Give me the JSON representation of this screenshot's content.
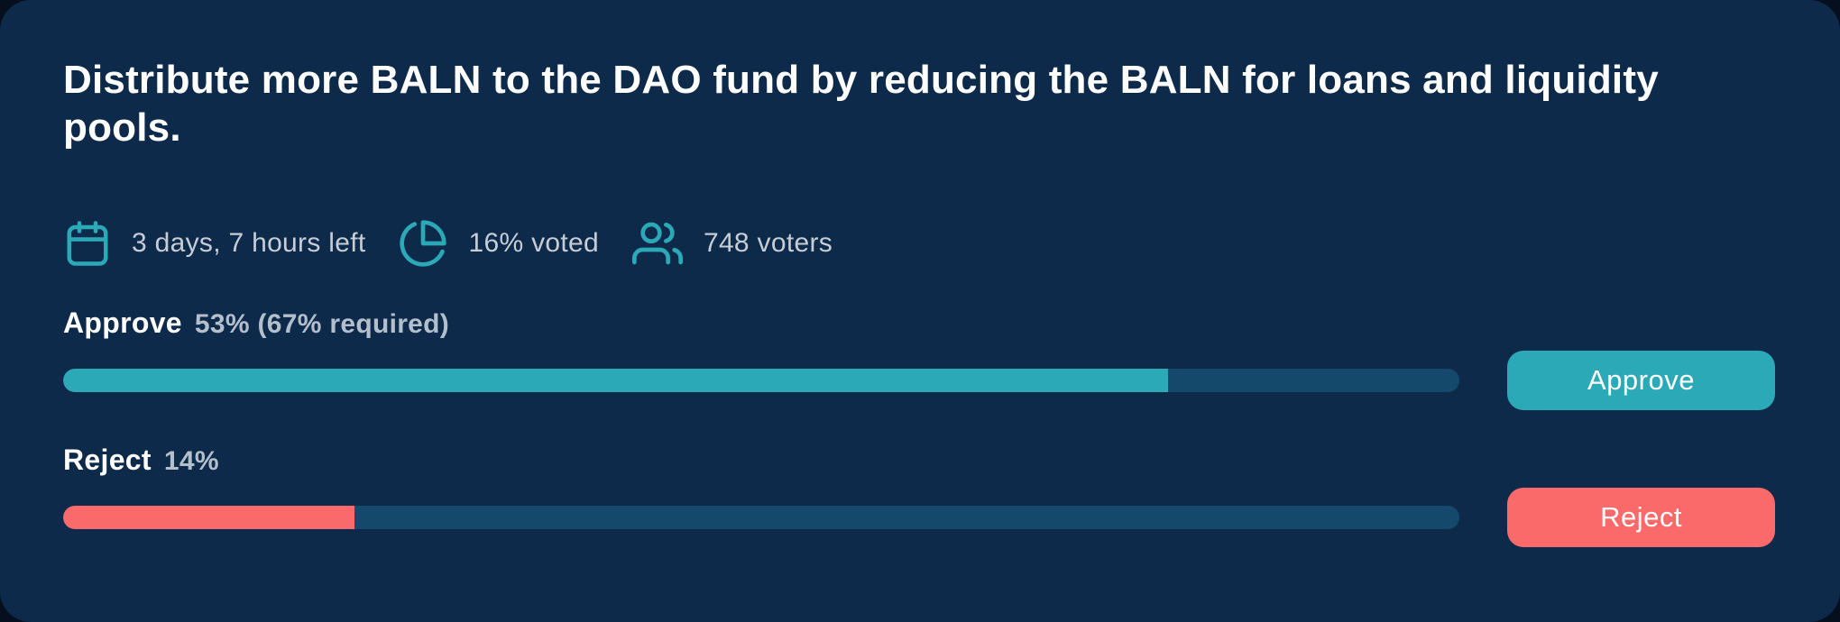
{
  "card": {
    "title": "Distribute more BALN to the DAO fund by reducing the BALN for loans and liquidity pools.",
    "meta": [
      {
        "icon": "calendar-icon",
        "text": "3 days, 7 hours left"
      },
      {
        "icon": "pie-chart-icon",
        "text": "16% voted"
      },
      {
        "icon": "users-icon",
        "text": "748 voters"
      }
    ],
    "votes": {
      "approve": {
        "label": "Approve",
        "stat": "53% (67% required)",
        "percent": 53,
        "required": 67,
        "button_label": "Approve",
        "color": "#2ca9b7"
      },
      "reject": {
        "label": "Reject",
        "stat": "14%",
        "percent": 14,
        "required": 67,
        "button_label": "Reject",
        "color": "#fb6a6a"
      }
    },
    "colors": {
      "page_bg": "#060f1d",
      "card_bg": "#0d2a4a",
      "track": "#14496b",
      "teal": "#2ca9b7",
      "coral": "#fb6a6a",
      "muted_text": "#c6cdd6",
      "stat_text": "#b4bfcc"
    }
  }
}
